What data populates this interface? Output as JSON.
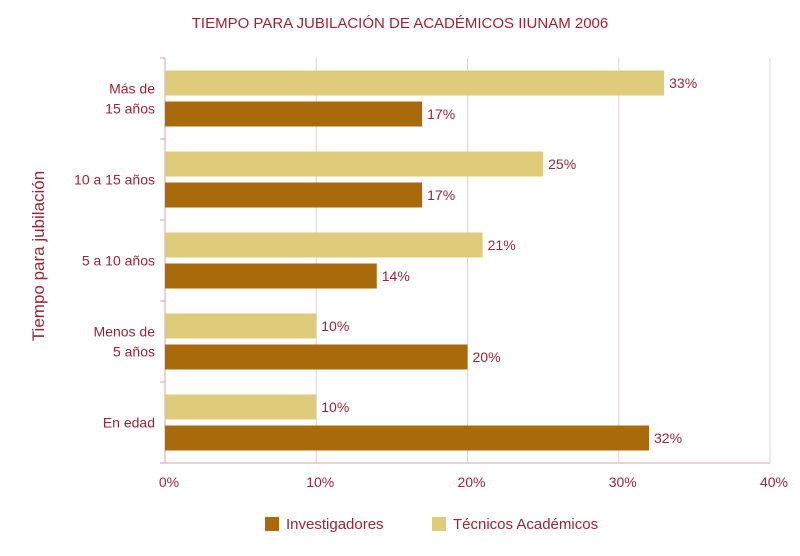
{
  "chart_data": {
    "type": "bar",
    "orientation": "horizontal",
    "title": "TIEMPO PARA JUBILACIÓN DE ACADÉMICOS IIUNAM 2006",
    "ylabel": "Tiempo para jubilación",
    "xlabel": "",
    "categories": [
      [
        "Más de",
        "15 años"
      ],
      [
        "10 a 15 años"
      ],
      [
        "5 a 10 años"
      ],
      [
        "Menos de",
        "5 años"
      ],
      [
        "En edad"
      ]
    ],
    "series": [
      {
        "name": "Técnicos Académicos",
        "color": "#dfcc7a",
        "values": [
          33,
          25,
          21,
          10,
          10
        ]
      },
      {
        "name": "Investigadores",
        "color": "#a86a0a",
        "values": [
          17,
          17,
          14,
          20,
          32
        ]
      }
    ],
    "xlim": [
      0,
      40
    ],
    "xticks": [
      "0%",
      "10%",
      "20%",
      "30%",
      "40%"
    ],
    "value_suffix": "%",
    "grid": true,
    "legend": [
      "Investigadores",
      "Técnicos Académicos"
    ],
    "legend_position": "bottom"
  }
}
